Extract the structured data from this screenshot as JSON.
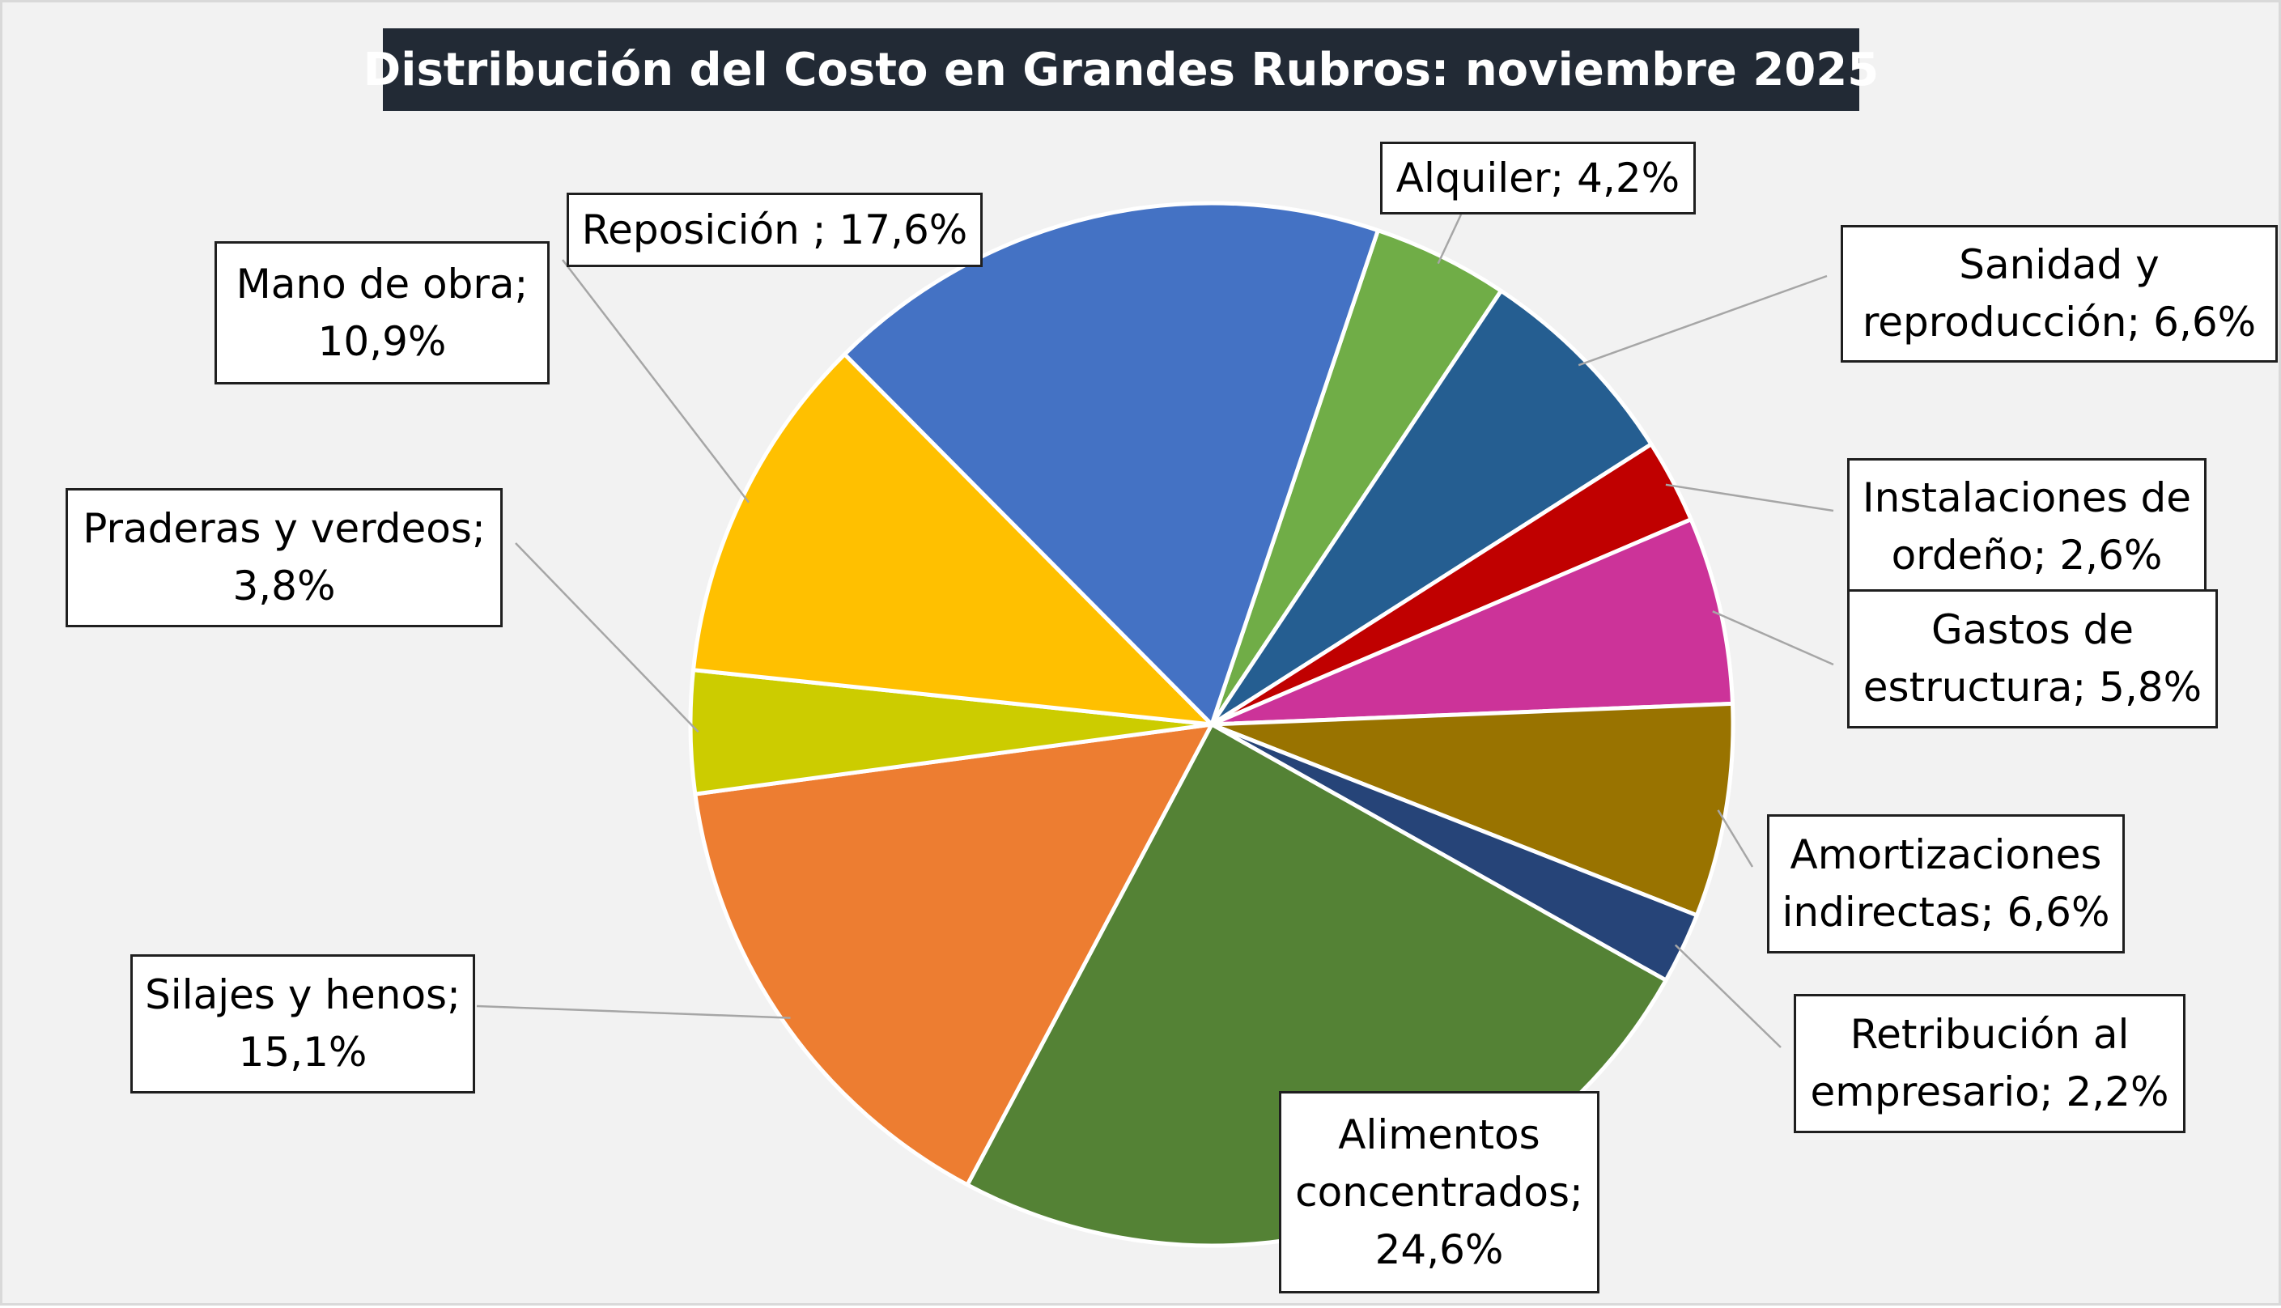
{
  "chart_data": {
    "type": "pie",
    "title": "Distribución del Costo en Grandes Rubros: noviembre 2025",
    "slices": [
      {
        "label": "Alquiler",
        "value": 4.2,
        "value_text": "4,2%",
        "label_text": "Alquiler; 4,2%",
        "color": "#70ad47"
      },
      {
        "label": "Sanidad y reproducción",
        "value": 6.6,
        "value_text": "6,6%",
        "label_text": "Sanidad y\nreproducción; 6,6%",
        "color": "#255e91"
      },
      {
        "label": "Instalaciones de ordeño",
        "value": 2.6,
        "value_text": "2,6%",
        "label_text": "Instalaciones de\nordeño; 2,6%",
        "color": "#c00000"
      },
      {
        "label": "Gastos de estructura",
        "value": 5.8,
        "value_text": "5,8%",
        "label_text": "Gastos de\nestructura; 5,8%",
        "color": "#cc3399"
      },
      {
        "label": "Amortizaciones indirectas",
        "value": 6.6,
        "value_text": "6,6%",
        "label_text": "Amortizaciones\nindirectas; 6,6%",
        "color": "#997300"
      },
      {
        "label": "Retribución al empresario",
        "value": 2.2,
        "value_text": "2,2%",
        "label_text": "Retribución al\nempresario; 2,2%",
        "color": "#264478"
      },
      {
        "label": "Alimentos concentrados",
        "value": 24.6,
        "value_text": "24,6%",
        "label_text": "Alimentos\nconcentrados;\n24,6%",
        "color": "#548235"
      },
      {
        "label": "Silajes y henos",
        "value": 15.1,
        "value_text": "15,1%",
        "label_text": "Silajes y henos;\n15,1%",
        "color": "#ed7d31"
      },
      {
        "label": "Praderas y verdeos",
        "value": 3.8,
        "value_text": "3,8%",
        "label_text": "Praderas y verdeos;\n3,8%",
        "color": "#cccc00"
      },
      {
        "label": "Mano de obra",
        "value": 10.9,
        "value_text": "10,9%",
        "label_text": "Mano de obra;\n10,9%",
        "color": "#ffc000"
      },
      {
        "label": "Reposición",
        "value": 17.6,
        "value_text": "17,6%",
        "label_text": "Reposición ; 17,6%",
        "color": "#4472c4"
      }
    ],
    "start_angle_deg": 18.6,
    "direction": "clockwise",
    "legend": "none",
    "data_labels": "outside with leader lines"
  }
}
